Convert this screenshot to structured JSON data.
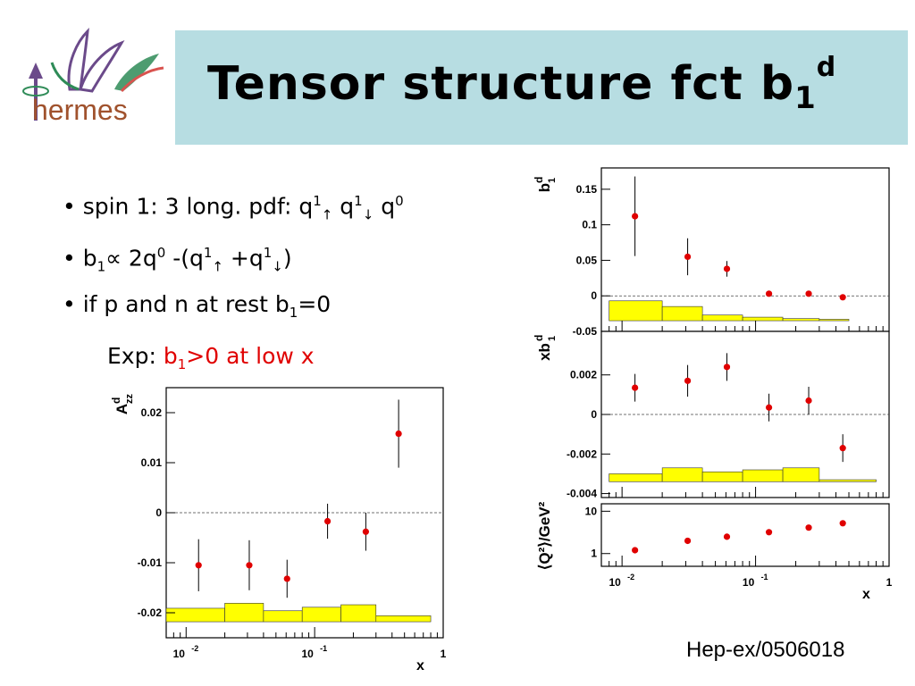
{
  "slide": {
    "title_main": "Tensor structure fct b",
    "title_sub": "1",
    "title_sup": "d",
    "logo_text": "hermes",
    "reference": "Hep-ex/0506018"
  },
  "bullets": [
    {
      "parts": [
        "• spin 1: 3 long. pdf: q",
        "1",
        "↑",
        " q",
        "1",
        "↓",
        " q",
        "0"
      ]
    },
    {
      "parts": [
        "• b",
        "1",
        "∝ 2q",
        "0",
        " -(q",
        "1",
        "↑",
        " +q",
        "1",
        "↓",
        ")"
      ]
    },
    {
      "parts": [
        "• if p and n at rest b",
        "1",
        "=0"
      ]
    }
  ],
  "exp_line": {
    "prefix": "Exp: ",
    "red_a": "b",
    "red_sub": "1",
    "red_b": ">0 at low x"
  },
  "colors": {
    "title_bg": "#b7dde2",
    "points": "#e00000",
    "band": "#ffff00",
    "accent_red": "#e00000"
  },
  "chart_data": [
    {
      "type": "scatter",
      "ylabel": "A_zz^d",
      "xlabel": "x",
      "x_scale": "log",
      "xlim": [
        0.007,
        1
      ],
      "ylim": [
        -0.025,
        0.025
      ],
      "yticks": [
        "0.02",
        "0.01",
        "0",
        "-0.01",
        "-0.02"
      ],
      "xticks": [
        "10^-2",
        "10^-1",
        "1"
      ],
      "points": [
        {
          "x": 0.0125,
          "y": -0.0105,
          "err": 0.0052
        },
        {
          "x": 0.031,
          "y": -0.0105,
          "err": 0.005
        },
        {
          "x": 0.061,
          "y": -0.0132,
          "err": 0.0038
        },
        {
          "x": 0.126,
          "y": -0.0017,
          "err": 0.0035
        },
        {
          "x": 0.25,
          "y": -0.0038,
          "err": 0.0038
        },
        {
          "x": 0.45,
          "y": 0.0158,
          "err": 0.0068
        }
      ],
      "systematics_band": [
        {
          "x0": 0.007,
          "x1": 0.02,
          "h": 0.0027
        },
        {
          "x0": 0.02,
          "x1": 0.04,
          "h": 0.0037
        },
        {
          "x0": 0.04,
          "x1": 0.08,
          "h": 0.0022
        },
        {
          "x0": 0.08,
          "x1": 0.16,
          "h": 0.0029
        },
        {
          "x0": 0.16,
          "x1": 0.3,
          "h": 0.0034
        },
        {
          "x0": 0.3,
          "x1": 0.8,
          "h": 0.0012
        }
      ],
      "band_base": -0.0218
    },
    {
      "type": "scatter",
      "ylabel": "b_1^d",
      "x_scale": "log",
      "xlim": [
        0.007,
        1
      ],
      "ylim": [
        -0.05,
        0.18
      ],
      "yticks": [
        "0.15",
        "0.1",
        "0.05",
        "0",
        "-0.05"
      ],
      "points": [
        {
          "x": 0.0125,
          "y": 0.112,
          "err": 0.056
        },
        {
          "x": 0.031,
          "y": 0.055,
          "err": 0.026
        },
        {
          "x": 0.061,
          "y": 0.038,
          "err": 0.011
        },
        {
          "x": 0.126,
          "y": 0.003,
          "err": 0.003
        },
        {
          "x": 0.25,
          "y": 0.003,
          "err": 0.002
        },
        {
          "x": 0.45,
          "y": -0.002,
          "err": 0.002
        }
      ],
      "systematics_band": [
        {
          "x0": 0.008,
          "x1": 0.02,
          "h": 0.028
        },
        {
          "x0": 0.02,
          "x1": 0.04,
          "h": 0.02
        },
        {
          "x0": 0.04,
          "x1": 0.08,
          "h": 0.008
        },
        {
          "x0": 0.08,
          "x1": 0.16,
          "h": 0.005
        },
        {
          "x0": 0.16,
          "x1": 0.3,
          "h": 0.003
        },
        {
          "x0": 0.3,
          "x1": 0.5,
          "h": 0.002
        }
      ],
      "band_base": -0.035
    },
    {
      "type": "scatter",
      "ylabel": "xb_1^d",
      "x_scale": "log",
      "xlim": [
        0.007,
        1
      ],
      "ylim": [
        -0.0042,
        0.0042
      ],
      "yticks": [
        "0.002",
        "0",
        "-0.002",
        "-0.004"
      ],
      "points": [
        {
          "x": 0.0125,
          "y": 0.00135,
          "err": 0.0007
        },
        {
          "x": 0.031,
          "y": 0.0017,
          "err": 0.0008
        },
        {
          "x": 0.061,
          "y": 0.0024,
          "err": 0.0007
        },
        {
          "x": 0.126,
          "y": 0.00035,
          "err": 0.0007
        },
        {
          "x": 0.25,
          "y": 0.0007,
          "err": 0.0007
        },
        {
          "x": 0.45,
          "y": -0.0017,
          "err": 0.0007
        }
      ],
      "systematics_band": [
        {
          "x0": 0.008,
          "x1": 0.02,
          "h": 0.0004
        },
        {
          "x0": 0.02,
          "x1": 0.04,
          "h": 0.0007
        },
        {
          "x0": 0.04,
          "x1": 0.08,
          "h": 0.0005
        },
        {
          "x0": 0.08,
          "x1": 0.16,
          "h": 0.0006
        },
        {
          "x0": 0.16,
          "x1": 0.3,
          "h": 0.0007
        },
        {
          "x0": 0.3,
          "x1": 0.8,
          "h": 0.0001
        }
      ],
      "band_base": -0.0034
    },
    {
      "type": "scatter",
      "ylabel": "⟨Q²⟩/GeV²",
      "xlabel": "x",
      "x_scale": "log",
      "xlim": [
        0.007,
        1
      ],
      "y_scale": "log",
      "ylim": [
        0.5,
        15
      ],
      "yticks": [
        "1",
        "10"
      ],
      "xticks": [
        "10^-2",
        "10^-1",
        "1"
      ],
      "points": [
        {
          "x": 0.0125,
          "y": 1.2
        },
        {
          "x": 0.031,
          "y": 2.0
        },
        {
          "x": 0.061,
          "y": 2.5
        },
        {
          "x": 0.126,
          "y": 3.2
        },
        {
          "x": 0.25,
          "y": 4.1
        },
        {
          "x": 0.45,
          "y": 5.2
        }
      ]
    }
  ]
}
